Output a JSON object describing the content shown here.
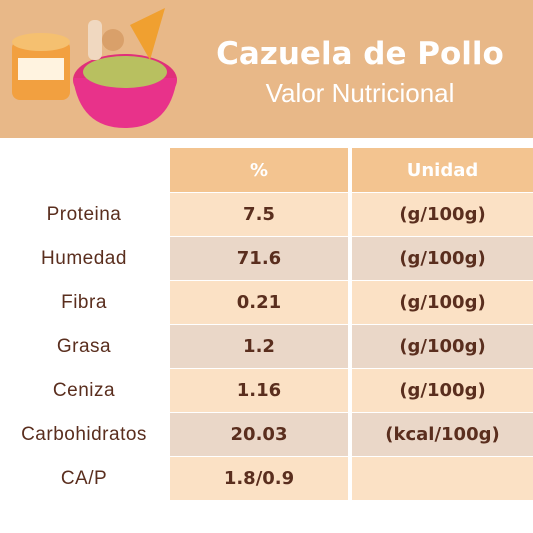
{
  "header": {
    "title": "Cazuela de Pollo",
    "subtitle": "Valor Nutricional"
  },
  "table": {
    "columns": [
      "%",
      "Unidad"
    ],
    "rows": [
      [
        "Proteina",
        7.5,
        "(g/100g)"
      ],
      [
        "Humedad",
        71.6,
        "(g/100g)"
      ],
      [
        "Fibra",
        0.21,
        "(g/100g)"
      ],
      [
        "Grasa",
        1.2,
        "(g/100g)"
      ],
      [
        "Ceniza",
        1.16,
        "(g/100g)"
      ],
      [
        "Carbohidratos",
        20.03,
        "(kcal/100g)"
      ],
      [
        "CA/P",
        "1.8/0.9"
      ]
    ]
  }
}
